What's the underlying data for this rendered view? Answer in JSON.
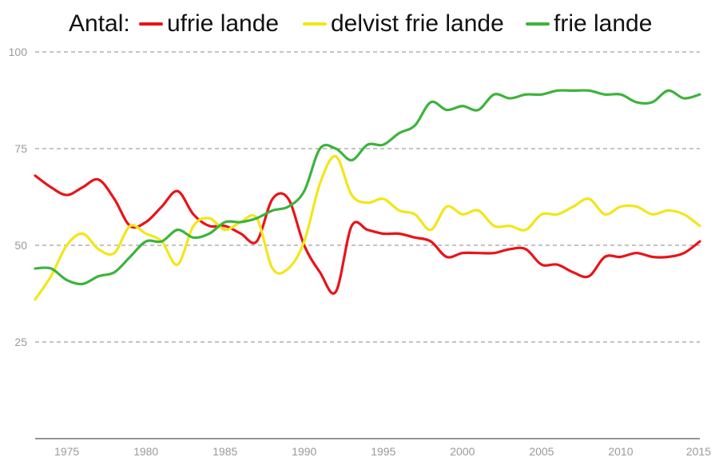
{
  "chart_data": {
    "type": "line",
    "legend_title": "Antal:",
    "legend_position": "top",
    "grid": true,
    "ylim": [
      0,
      100
    ],
    "xlim": [
      1973,
      2015
    ],
    "yticks": [
      25,
      50,
      75,
      100
    ],
    "xticks": [
      1975,
      1980,
      1985,
      1990,
      1995,
      2000,
      2005,
      2010,
      2015
    ],
    "x": [
      1973,
      1974,
      1975,
      1976,
      1977,
      1978,
      1979,
      1980,
      1981,
      1982,
      1983,
      1984,
      1985,
      1986,
      1987,
      1988,
      1989,
      1990,
      1991,
      1992,
      1993,
      1994,
      1995,
      1996,
      1997,
      1998,
      1999,
      2000,
      2001,
      2002,
      2003,
      2004,
      2005,
      2006,
      2007,
      2008,
      2009,
      2010,
      2011,
      2012,
      2013,
      2014,
      2015
    ],
    "series": [
      {
        "name": "ufrie lande",
        "color": "#e8141a",
        "values": [
          68,
          65,
          63,
          65,
          67,
          62,
          55,
          56,
          60,
          64,
          58,
          55,
          55,
          53,
          51,
          62,
          62,
          50,
          43,
          38,
          55,
          54,
          53,
          53,
          52,
          51,
          47,
          48,
          48,
          48,
          49,
          49,
          45,
          45,
          43,
          42,
          47,
          47,
          48,
          47,
          47,
          48,
          51
        ]
      },
      {
        "name": "delvist frie lande",
        "color": "#f2e61a",
        "values": [
          36,
          42,
          50,
          53,
          49,
          48,
          55,
          53,
          51,
          45,
          55,
          57,
          54,
          56,
          57,
          44,
          44,
          51,
          66,
          73,
          63,
          61,
          62,
          59,
          58,
          54,
          60,
          58,
          59,
          55,
          55,
          54,
          58,
          58,
          60,
          62,
          58,
          60,
          60,
          58,
          59,
          58,
          55
        ]
      },
      {
        "name": "frie lande",
        "color": "#3db33d",
        "values": [
          44,
          44,
          41,
          40,
          42,
          43,
          47,
          51,
          51,
          54,
          52,
          53,
          56,
          56,
          57,
          59,
          60,
          64,
          75,
          75,
          72,
          76,
          76,
          79,
          81,
          87,
          85,
          86,
          85,
          89,
          88,
          89,
          89,
          90,
          90,
          90,
          89,
          89,
          87,
          87,
          90,
          88,
          89
        ]
      }
    ]
  }
}
